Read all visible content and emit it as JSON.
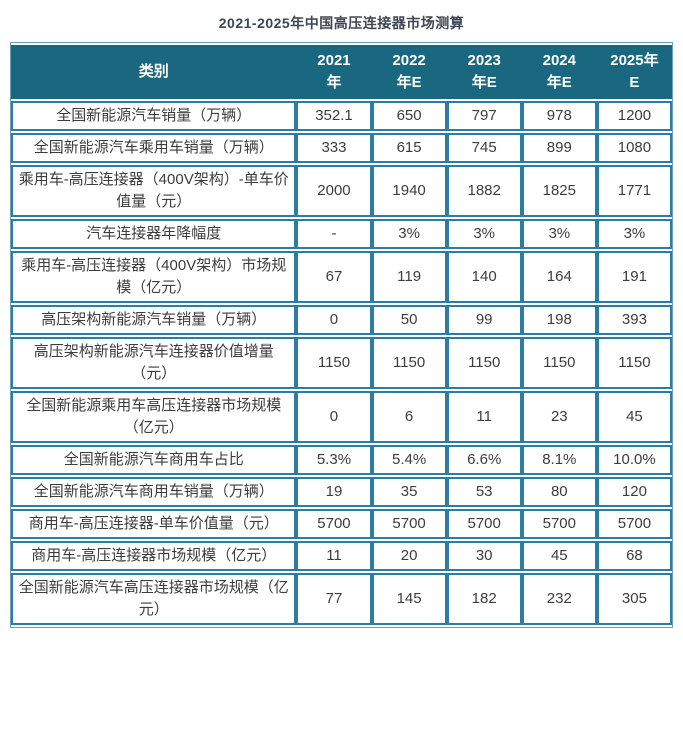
{
  "chart_data": {
    "type": "table",
    "title": "2021-2025年中国高压连接器市场测算",
    "category_header": "类别",
    "columns": [
      "类别",
      "2021年",
      "2022年E",
      "2023年E",
      "2024年E",
      "2025年E"
    ],
    "year_header_lines": [
      [
        "2021",
        "年"
      ],
      [
        "2022",
        "年E"
      ],
      [
        "2023",
        "年E"
      ],
      [
        "2024",
        "年E"
      ],
      [
        "2025年",
        "E"
      ]
    ],
    "rows": [
      {
        "label": "全国新能源汽车销量（万辆）",
        "values": [
          "352.1",
          "650",
          "797",
          "978",
          "1200"
        ]
      },
      {
        "label": "全国新能源汽车乘用车销量（万辆）",
        "values": [
          "333",
          "615",
          "745",
          "899",
          "1080"
        ]
      },
      {
        "label": "乘用车-高压连接器（400V架构）-单车价值量（元）",
        "values": [
          "2000",
          "1940",
          "1882",
          "1825",
          "1771"
        ]
      },
      {
        "label": "汽车连接器年降幅度",
        "values": [
          "-",
          "3%",
          "3%",
          "3%",
          "3%"
        ]
      },
      {
        "label": "乘用车-高压连接器（400V架构）市场规模（亿元）",
        "values": [
          "67",
          "119",
          "140",
          "164",
          "191"
        ]
      },
      {
        "label": "高压架构新能源汽车销量（万辆）",
        "values": [
          "0",
          "50",
          "99",
          "198",
          "393"
        ]
      },
      {
        "label": "高压架构新能源汽车连接器价值增量（元）",
        "values": [
          "1150",
          "1150",
          "1150",
          "1150",
          "1150"
        ]
      },
      {
        "label": "全国新能源乘用车高压连接器市场规模（亿元）",
        "values": [
          "0",
          "6",
          "11",
          "23",
          "45"
        ]
      },
      {
        "label": "全国新能源汽车商用车占比",
        "values": [
          "5.3%",
          "5.4%",
          "6.6%",
          "8.1%",
          "10.0%"
        ]
      },
      {
        "label": "全国新能源汽车商用车销量（万辆）",
        "values": [
          "19",
          "35",
          "53",
          "80",
          "120"
        ]
      },
      {
        "label": "商用车-高压连接器-单车价值量（元）",
        "values": [
          "5700",
          "5700",
          "5700",
          "5700",
          "5700"
        ]
      },
      {
        "label": "商用车-高压连接器市场规模（亿元）",
        "values": [
          "11",
          "20",
          "30",
          "45",
          "68"
        ]
      },
      {
        "label": "全国新能源汽车高压连接器市场规模（亿元）",
        "values": [
          "77",
          "145",
          "182",
          "232",
          "305"
        ]
      }
    ],
    "layout_hints": {
      "header_bg_color": "#19687f",
      "cell_border_color": "#2b7ea1",
      "header_text_color": "#ffffff",
      "body_text_color": "#3d3d3d",
      "title_text_color": "#3e4651"
    }
  }
}
